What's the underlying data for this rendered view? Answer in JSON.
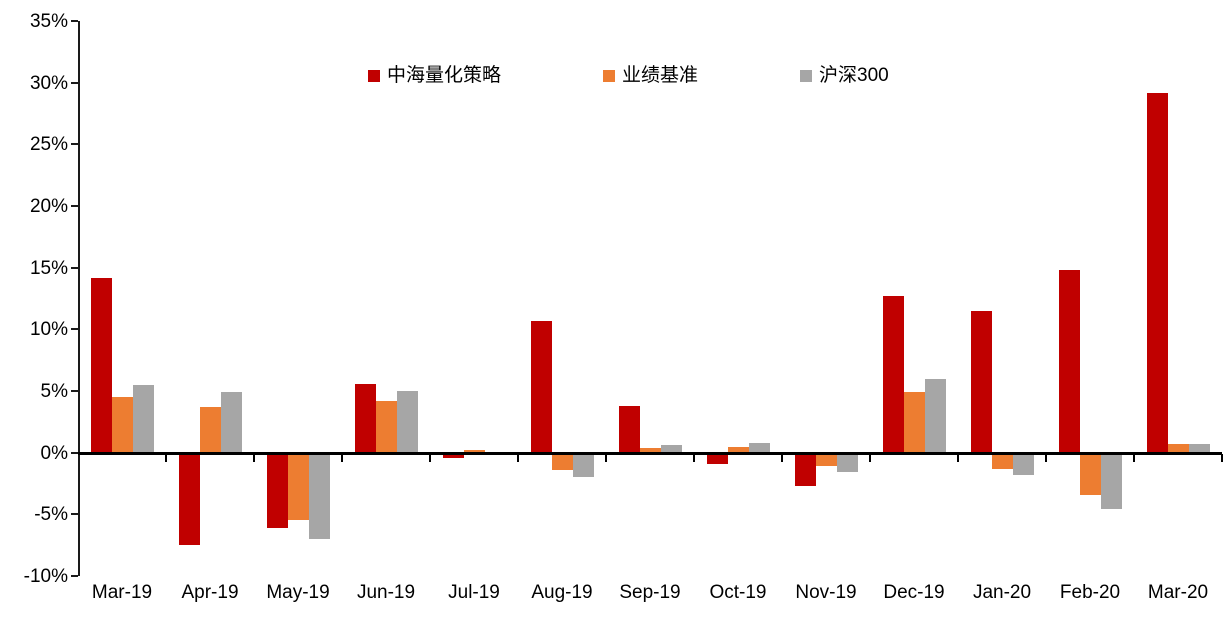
{
  "chart_data": {
    "type": "bar",
    "title": "",
    "categories": [
      "Mar-19",
      "Apr-19",
      "May-19",
      "Jun-19",
      "Jul-19",
      "Aug-19",
      "Sep-19",
      "Oct-19",
      "Nov-19",
      "Dec-19",
      "Jan-20",
      "Feb-20",
      "Mar-20"
    ],
    "series": [
      {
        "name": "中海量化策略",
        "color": "#C00000",
        "values": [
          14.2,
          -7.5,
          -6.1,
          5.6,
          -0.4,
          10.7,
          3.8,
          -0.9,
          -2.7,
          12.7,
          11.5,
          14.8,
          29.2
        ]
      },
      {
        "name": "业绩基准",
        "color": "#ED7D31",
        "values": [
          4.5,
          3.7,
          -5.5,
          4.2,
          0.2,
          -1.4,
          0.4,
          0.5,
          -1.1,
          4.9,
          -1.3,
          -3.4,
          0.7
        ]
      },
      {
        "name": "沪深300",
        "color": "#A6A6A6",
        "values": [
          5.5,
          4.9,
          -7.0,
          5.0,
          0.0,
          -2.0,
          0.6,
          0.8,
          -1.6,
          6.0,
          -1.8,
          -4.6,
          0.7
        ]
      }
    ],
    "ylabel": "",
    "xlabel": "",
    "ylim": [
      -10,
      35
    ],
    "ytick_step": 5,
    "ytick_labels": [
      "35%",
      "30%",
      "25%",
      "20%",
      "15%",
      "10%",
      "5%",
      "0%",
      "-5%",
      "-10%"
    ],
    "grid": false,
    "legend_position": "top-center",
    "axis_color": "#000000",
    "background_color": "#FFFFFF"
  }
}
